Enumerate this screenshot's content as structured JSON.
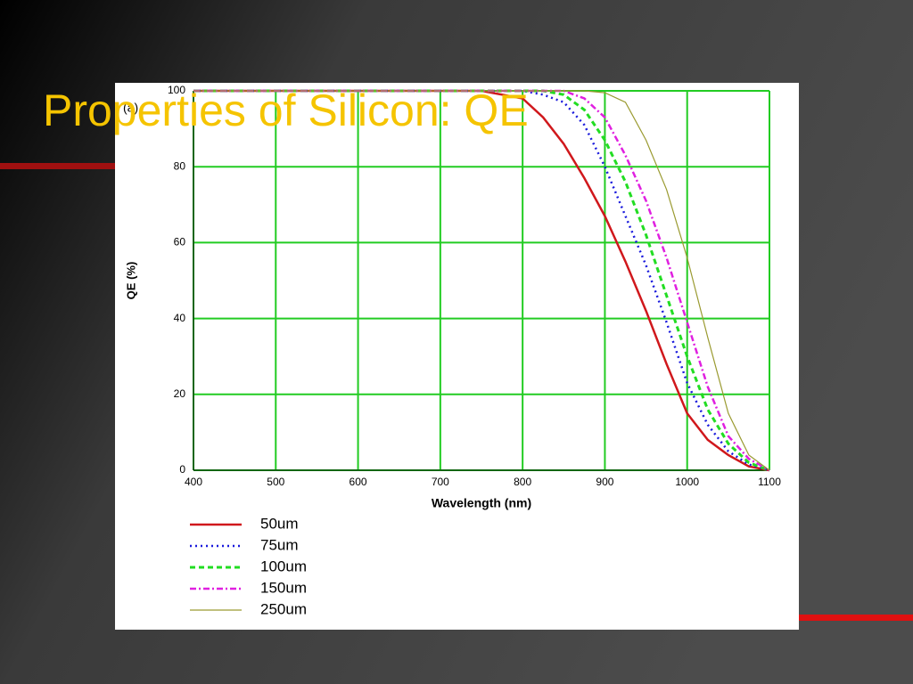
{
  "slide": {
    "title": "Properties of Silicon: QE"
  },
  "chart_data": {
    "type": "line",
    "annotation": "(a)",
    "x_label": "Wavelength (nm)",
    "y_label": "QE (%)",
    "x": [
      400,
      500,
      600,
      700,
      750,
      800,
      825,
      850,
      875,
      900,
      925,
      950,
      975,
      1000,
      1025,
      1050,
      1075,
      1100
    ],
    "series": [
      {
        "name": "50um",
        "color": "#d0181c",
        "dash": "solid",
        "values": [
          100,
          100,
          100,
          100,
          100,
          98,
          93,
          86,
          77,
          67,
          55,
          42,
          28,
          15,
          8,
          4,
          1,
          0
        ]
      },
      {
        "name": "75um",
        "color": "#1a1adc",
        "dash": "dotted",
        "values": [
          100,
          100,
          100,
          100,
          100,
          100,
          99,
          97,
          91,
          80,
          67,
          54,
          39,
          23,
          12,
          5,
          1.5,
          0
        ]
      },
      {
        "name": "100um",
        "color": "#22dd22",
        "dash": "dashed",
        "values": [
          100,
          100,
          100,
          100,
          100,
          100,
          100,
          99,
          95,
          87,
          76,
          62,
          46,
          30,
          16,
          7,
          2,
          0
        ]
      },
      {
        "name": "150um",
        "color": "#e020e0",
        "dash": "dashdot",
        "values": [
          100,
          100,
          100,
          100,
          100,
          100,
          100,
          100,
          98,
          93,
          83,
          71,
          56,
          39,
          22,
          9,
          3,
          0
        ]
      },
      {
        "name": "250um",
        "color": "#9a9a30",
        "dash": "thin",
        "values": [
          100,
          100,
          100,
          100,
          100,
          100,
          100,
          100,
          100,
          99.5,
          97,
          87,
          74,
          56,
          35,
          15,
          4,
          0
        ]
      }
    ],
    "xlim": [
      400,
      1100
    ],
    "ylim": [
      0,
      100
    ],
    "xticks": [
      400,
      500,
      600,
      700,
      800,
      900,
      1000,
      1100
    ],
    "yticks": [
      0,
      20,
      40,
      60,
      80,
      100
    ],
    "grid": true,
    "grid_color": "#22cc22"
  }
}
